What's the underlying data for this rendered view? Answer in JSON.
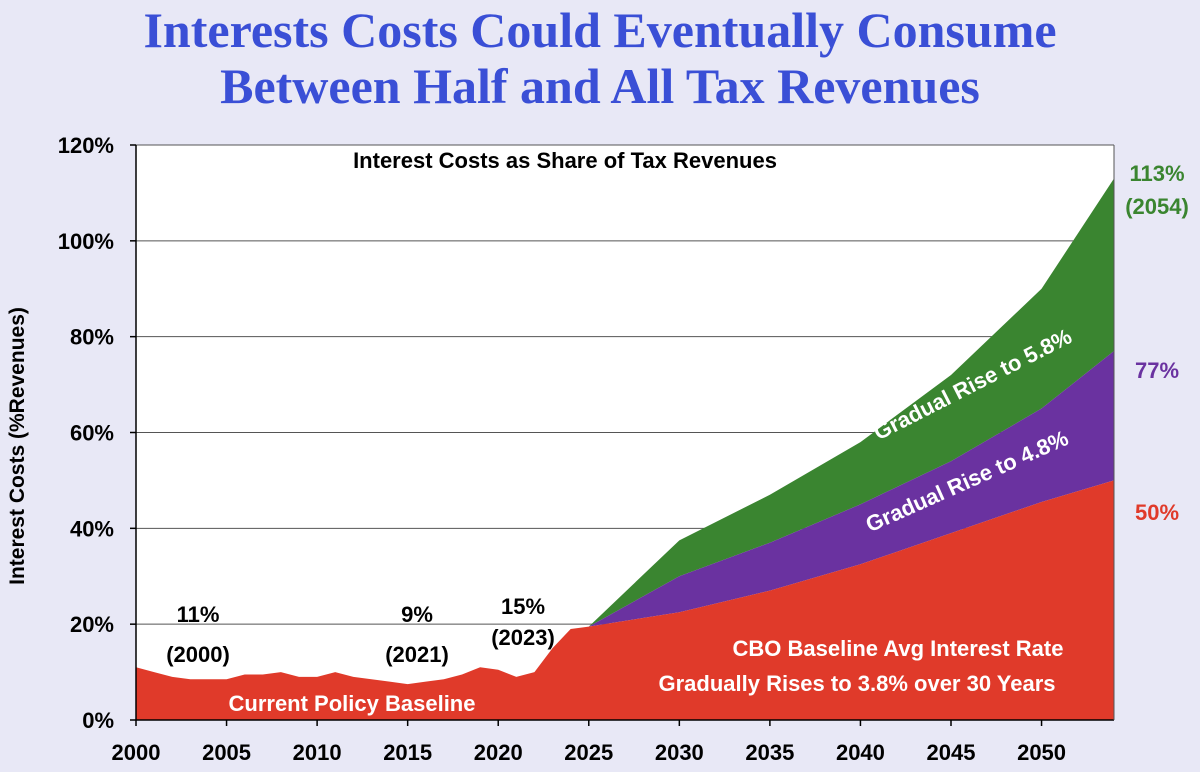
{
  "title": {
    "line1": "Interests Costs Could Eventually Consume",
    "line2": "Between Half and All Tax Revenues"
  },
  "colors": {
    "background": "#e8e8f6",
    "title": "#3a4fd6",
    "baseline": "#e03a2a",
    "rise48": "#6a32a0",
    "rise58": "#3a8530",
    "plot_bg": "#ffffff"
  },
  "chart_data": {
    "type": "area",
    "title": "Interest Costs as Share of Tax Revenues",
    "ylabel": "Interest Costs (%Revenues)",
    "xlabel": "",
    "xlim": [
      2000,
      2054
    ],
    "ylim": [
      0,
      120
    ],
    "grid": true,
    "x_ticks": [
      "2000",
      "2005",
      "2010",
      "2015",
      "2020",
      "2025",
      "2030",
      "2035",
      "2040",
      "2045",
      "2050"
    ],
    "y_ticks": [
      "0%",
      "20%",
      "40%",
      "60%",
      "80%",
      "100%",
      "120%"
    ],
    "series": [
      {
        "name": "CBO Baseline Avg Interest Rate Gradually Rises to 3.8% over 30 Years",
        "color": "#e03a2a",
        "x": [
          2000,
          2001,
          2002,
          2003,
          2004,
          2005,
          2006,
          2007,
          2008,
          2009,
          2010,
          2011,
          2012,
          2013,
          2014,
          2015,
          2016,
          2017,
          2018,
          2019,
          2020,
          2021,
          2022,
          2023,
          2024,
          2025,
          2030,
          2035,
          2040,
          2045,
          2050,
          2054
        ],
        "values": [
          11,
          10,
          9,
          8.5,
          8.5,
          8.5,
          9.5,
          9.5,
          10,
          9,
          9,
          10,
          9,
          8.5,
          8,
          7.5,
          8,
          8.5,
          9.5,
          11,
          10.5,
          9,
          10,
          15,
          19,
          19.5,
          22.5,
          27,
          32.5,
          39,
          45.5,
          50
        ]
      },
      {
        "name": "Gradual Rise to 4.8%",
        "color": "#6a32a0",
        "x": [
          2025,
          2030,
          2035,
          2040,
          2045,
          2050,
          2054
        ],
        "values": [
          19.5,
          30,
          37,
          45,
          54,
          65,
          77
        ]
      },
      {
        "name": "Gradual Rise to 5.8%",
        "color": "#3a8530",
        "x": [
          2025,
          2030,
          2035,
          2040,
          2045,
          2050,
          2054
        ],
        "values": [
          19.5,
          37.5,
          47,
          58,
          72,
          90,
          113
        ]
      }
    ],
    "annotations": [
      {
        "value": "11%",
        "year": "(2000)"
      },
      {
        "value": "9%",
        "year": "(2021)"
      },
      {
        "value": "15%",
        "year": "(2023)"
      }
    ],
    "band_labels": {
      "current_policy": "Current Policy Baseline",
      "cbo_line1": "CBO Baseline Avg Interest Rate",
      "cbo_line2": "Gradually Rises to 3.8% over 30 Years",
      "rise48": "Gradual Rise to 4.8%",
      "rise58": "Gradual Rise to 5.8%"
    },
    "end_labels": [
      {
        "value": "113%",
        "year": "(2054)",
        "color": "#3a8530"
      },
      {
        "value": "77%",
        "color": "#6a32a0"
      },
      {
        "value": "50%",
        "color": "#e03a2a"
      }
    ]
  }
}
